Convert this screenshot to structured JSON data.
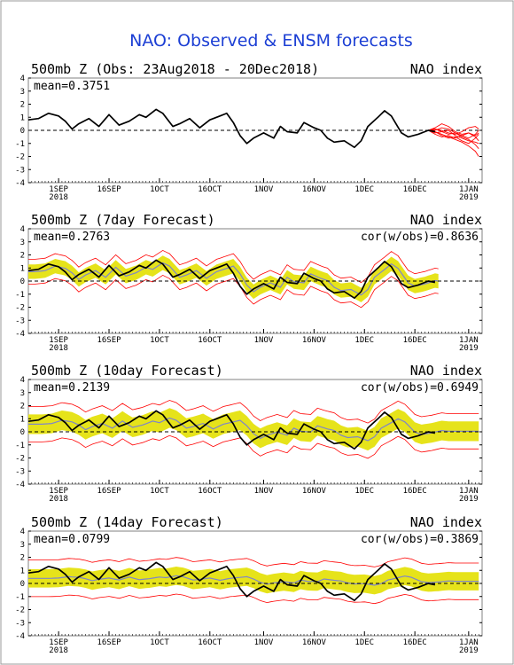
{
  "page": {
    "title": "NAO: Observed & ENSM forecasts"
  },
  "colors": {
    "title": "#1c3fd4",
    "observed": "#000000",
    "members": "#ff0000",
    "spread": "#e6e31a",
    "ensemble_mean": "#7f86c8",
    "zero_line": "#000000",
    "frame": "#808080"
  },
  "chart_data": [
    {
      "type": "line",
      "title_left": "500mb Z (Obs: 23Aug2018 - 20Dec2018)",
      "title_right": "NAO index",
      "stat_left": "mean=0.3751",
      "stat_right": "",
      "y_ticks": [
        "4",
        "3",
        "2",
        "1",
        "0",
        "-1",
        "-2",
        "-3",
        "-4"
      ],
      "ylim": [
        -4,
        4
      ],
      "xlim_days": [
        0,
        135
      ],
      "x_ticks": [
        {
          "day": 9,
          "label": "1SEP",
          "label2": "2018"
        },
        {
          "day": 24,
          "label": "16SEP"
        },
        {
          "day": 39,
          "label": "1OCT"
        },
        {
          "day": 54,
          "label": "16OCT"
        },
        {
          "day": 70,
          "label": "1NOV"
        },
        {
          "day": 85,
          "label": "16NOV"
        },
        {
          "day": 100,
          "label": "1DEC"
        },
        {
          "day": 115,
          "label": "16DEC"
        },
        {
          "day": 131,
          "label": "1JAN",
          "label2": "2019"
        }
      ],
      "observed": {
        "name": "observed",
        "x": [
          0,
          3,
          6,
          9,
          11,
          13,
          15,
          18,
          21,
          24,
          27,
          30,
          33,
          35,
          38,
          40,
          43,
          45,
          48,
          51,
          54,
          57,
          59,
          61,
          63,
          65,
          67,
          70,
          73,
          75,
          77,
          80,
          82,
          85,
          87,
          89,
          91,
          94,
          97,
          99,
          101,
          104,
          106,
          108,
          111,
          113,
          116,
          119,
          121
        ],
        "y": [
          0.8,
          0.9,
          1.3,
          1.1,
          0.7,
          0.1,
          0.5,
          0.9,
          0.3,
          1.2,
          0.4,
          0.7,
          1.2,
          1.0,
          1.6,
          1.3,
          0.3,
          0.5,
          0.9,
          0.2,
          0.8,
          1.1,
          1.3,
          0.6,
          -0.4,
          -1.0,
          -0.6,
          -0.2,
          -0.6,
          0.3,
          -0.1,
          -0.2,
          0.6,
          0.2,
          0.0,
          -0.6,
          -0.9,
          -0.8,
          -1.3,
          -0.8,
          0.3,
          1.0,
          1.5,
          1.1,
          -0.2,
          -0.5,
          -0.3,
          0.0,
          -0.1
        ]
      },
      "forecast_days": [
        119,
        121,
        123,
        125,
        127,
        129,
        131,
        133,
        134
      ],
      "members": [
        [
          0.0,
          0.1,
          -0.1,
          -0.3,
          -0.2,
          -0.4,
          -0.6,
          -0.3,
          0.0
        ],
        [
          0.0,
          -0.1,
          -0.3,
          -0.5,
          -0.7,
          -0.9,
          -1.2,
          -1.6,
          -2.0
        ],
        [
          0.0,
          0.2,
          0.5,
          0.3,
          -0.1,
          -0.3,
          -0.2,
          -0.4,
          -0.2
        ],
        [
          0.0,
          -0.2,
          -0.1,
          0.0,
          -0.4,
          -0.6,
          -0.8,
          -0.9,
          -1.0
        ],
        [
          0.0,
          0.1,
          0.0,
          -0.2,
          -0.3,
          -0.1,
          0.2,
          0.3,
          0.1
        ],
        [
          0.0,
          -0.1,
          -0.4,
          -0.6,
          -0.5,
          -0.8,
          -1.0,
          -0.6,
          -0.3
        ],
        [
          0.0,
          0.0,
          0.2,
          0.1,
          -0.2,
          -0.5,
          -0.7,
          -1.1,
          -1.4
        ],
        [
          0.0,
          -0.3,
          -0.5,
          -0.4,
          -0.6,
          -0.4,
          -0.2,
          -0.5,
          -0.8
        ]
      ]
    },
    {
      "type": "area",
      "title_left": "500mb Z (7day Forecast)",
      "title_right": "NAO index",
      "stat_left": "mean=0.2763",
      "stat_right": "cor(w/obs)=0.8636",
      "y_ticks": [
        "4",
        "3",
        "2",
        "1",
        "0",
        "-1",
        "-2",
        "-3",
        "-4"
      ],
      "ylim": [
        -4,
        4
      ],
      "xlim_days": [
        0,
        135
      ],
      "x_ticks": [
        {
          "day": 9,
          "label": "1SEP",
          "label2": "2018"
        },
        {
          "day": 24,
          "label": "16SEP"
        },
        {
          "day": 39,
          "label": "1OCT"
        },
        {
          "day": 54,
          "label": "16OCT"
        },
        {
          "day": 70,
          "label": "1NOV"
        },
        {
          "day": 85,
          "label": "16NOV"
        },
        {
          "day": 100,
          "label": "1DEC"
        },
        {
          "day": 115,
          "label": "16DEC"
        },
        {
          "day": 131,
          "label": "1JAN",
          "label2": "2019"
        }
      ],
      "observed": {
        "name": "observed",
        "x": [
          0,
          3,
          6,
          9,
          11,
          13,
          15,
          18,
          21,
          24,
          27,
          30,
          33,
          35,
          38,
          40,
          43,
          45,
          48,
          51,
          54,
          57,
          59,
          61,
          63,
          65,
          67,
          70,
          73,
          75,
          77,
          80,
          82,
          85,
          87,
          89,
          91,
          94,
          97,
          99,
          101,
          104,
          106,
          108,
          111,
          113,
          116,
          119,
          121
        ],
        "y": [
          0.8,
          0.9,
          1.3,
          1.1,
          0.7,
          0.1,
          0.5,
          0.9,
          0.3,
          1.2,
          0.4,
          0.7,
          1.2,
          1.0,
          1.6,
          1.3,
          0.3,
          0.5,
          0.9,
          0.2,
          0.8,
          1.1,
          1.3,
          0.6,
          -0.4,
          -1.0,
          -0.6,
          -0.2,
          -0.6,
          0.3,
          -0.1,
          -0.2,
          0.6,
          0.2,
          0.0,
          -0.6,
          -0.9,
          -0.8,
          -1.3,
          -0.8,
          0.3,
          1.0,
          1.5,
          1.1,
          -0.2,
          -0.5,
          -0.3,
          0.0,
          -0.1
        ]
      },
      "forecast_end_day": 122,
      "forecast_lag_days": 2,
      "forecast_smooth": 0.15,
      "spread_halfwidth": 0.55,
      "envelope_halfwidth": 0.95
    },
    {
      "type": "area",
      "title_left": "500mb Z (10day Forecast)",
      "title_right": "NAO index",
      "stat_left": "mean=0.2139",
      "stat_right": "cor(w/obs)=0.6949",
      "y_ticks": [
        "4",
        "3",
        "2",
        "1",
        "0",
        "-1",
        "-2",
        "-3",
        "-4"
      ],
      "ylim": [
        -4,
        4
      ],
      "xlim_days": [
        0,
        135
      ],
      "x_ticks": [
        {
          "day": 9,
          "label": "1SEP",
          "label2": "2018"
        },
        {
          "day": 24,
          "label": "16SEP"
        },
        {
          "day": 39,
          "label": "1OCT"
        },
        {
          "day": 54,
          "label": "16OCT"
        },
        {
          "day": 70,
          "label": "1NOV"
        },
        {
          "day": 85,
          "label": "16NOV"
        },
        {
          "day": 100,
          "label": "1DEC"
        },
        {
          "day": 115,
          "label": "16DEC"
        },
        {
          "day": 131,
          "label": "1JAN",
          "label2": "2019"
        }
      ],
      "observed": {
        "name": "observed",
        "x": [
          0,
          3,
          6,
          9,
          11,
          13,
          15,
          18,
          21,
          24,
          27,
          30,
          33,
          35,
          38,
          40,
          43,
          45,
          48,
          51,
          54,
          57,
          59,
          61,
          63,
          65,
          67,
          70,
          73,
          75,
          77,
          80,
          82,
          85,
          87,
          89,
          91,
          94,
          97,
          99,
          101,
          104,
          106,
          108,
          111,
          113,
          116,
          119,
          121
        ],
        "y": [
          0.8,
          0.9,
          1.3,
          1.1,
          0.7,
          0.1,
          0.5,
          0.9,
          0.3,
          1.2,
          0.4,
          0.7,
          1.2,
          1.0,
          1.6,
          1.3,
          0.3,
          0.5,
          0.9,
          0.2,
          0.8,
          1.1,
          1.3,
          0.6,
          -0.4,
          -1.0,
          -0.6,
          -0.2,
          -0.6,
          0.3,
          -0.1,
          -0.2,
          0.6,
          0.2,
          0.0,
          -0.6,
          -0.9,
          -0.8,
          -1.3,
          -0.8,
          0.3,
          1.0,
          1.5,
          1.1,
          -0.2,
          -0.5,
          -0.3,
          0.0,
          -0.1
        ]
      },
      "forecast_end_day": 134,
      "forecast_lag_days": 4,
      "forecast_smooth": 0.4,
      "spread_halfwidth": 0.75,
      "envelope_halfwidth": 1.35
    },
    {
      "type": "area",
      "title_left": "500mb Z (14day Forecast)",
      "title_right": "NAO index",
      "stat_left": "mean=0.0799",
      "stat_right": "cor(w/obs)=0.3869",
      "y_ticks": [
        "4",
        "3",
        "2",
        "1",
        "0",
        "-1",
        "-2",
        "-3",
        "-4"
      ],
      "ylim": [
        -4,
        4
      ],
      "xlim_days": [
        0,
        135
      ],
      "x_ticks": [
        {
          "day": 9,
          "label": "1SEP",
          "label2": "2018"
        },
        {
          "day": 24,
          "label": "16SEP"
        },
        {
          "day": 39,
          "label": "1OCT"
        },
        {
          "day": 54,
          "label": "16OCT"
        },
        {
          "day": 70,
          "label": "1NOV"
        },
        {
          "day": 85,
          "label": "16NOV"
        },
        {
          "day": 100,
          "label": "1DEC"
        },
        {
          "day": 115,
          "label": "16DEC"
        },
        {
          "day": 131,
          "label": "1JAN",
          "label2": "2019"
        }
      ],
      "observed": {
        "name": "observed",
        "x": [
          0,
          3,
          6,
          9,
          11,
          13,
          15,
          18,
          21,
          24,
          27,
          30,
          33,
          35,
          38,
          40,
          43,
          45,
          48,
          51,
          54,
          57,
          59,
          61,
          63,
          65,
          67,
          70,
          73,
          75,
          77,
          80,
          82,
          85,
          87,
          89,
          91,
          94,
          97,
          99,
          101,
          104,
          106,
          108,
          111,
          113,
          116,
          119,
          121
        ],
        "y": [
          0.8,
          0.9,
          1.3,
          1.1,
          0.7,
          0.1,
          0.5,
          0.9,
          0.3,
          1.2,
          0.4,
          0.7,
          1.2,
          1.0,
          1.6,
          1.3,
          0.3,
          0.5,
          0.9,
          0.2,
          0.8,
          1.1,
          1.3,
          0.6,
          -0.4,
          -1.0,
          -0.6,
          -0.2,
          -0.6,
          0.3,
          -0.1,
          -0.2,
          0.6,
          0.2,
          0.0,
          -0.6,
          -0.9,
          -0.8,
          -1.3,
          -0.8,
          0.3,
          1.0,
          1.5,
          1.1,
          -0.2,
          -0.5,
          -0.3,
          0.0,
          -0.1
        ]
      },
      "forecast_end_day": 134,
      "forecast_lag_days": 6,
      "forecast_smooth": 0.75,
      "spread_halfwidth": 0.7,
      "envelope_halfwidth": 1.4
    }
  ]
}
